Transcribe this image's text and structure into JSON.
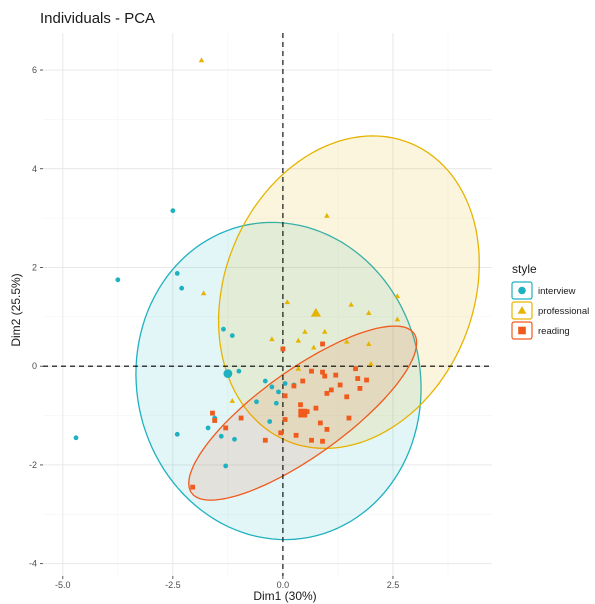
{
  "chart_data": {
    "type": "scatter",
    "title": "Individuals - PCA",
    "xlabel": "Dim1 (30%)",
    "ylabel": "Dim2 (25.5%)",
    "xlim": [
      -5.45,
      4.75
    ],
    "ylim": [
      -4.25,
      6.75
    ],
    "x_ticks": [
      -5.0,
      -2.5,
      0.0,
      2.5
    ],
    "x_tick_labels": [
      "-5.0",
      "-2.5",
      "0.0",
      "2.5"
    ],
    "y_ticks": [
      -4,
      -2,
      0,
      2,
      4,
      6
    ],
    "y_tick_labels": [
      "-4",
      "-2",
      "0",
      "2",
      "4",
      "6"
    ],
    "grid": true,
    "reference_lines": {
      "x": 0,
      "y": 0,
      "style": "dashed"
    },
    "legend": {
      "title": "style",
      "position": "right"
    },
    "series": [
      {
        "name": "interview",
        "color": "#1fb1bf",
        "marker": "circle",
        "points": [
          [
            -2.5,
            3.15
          ],
          [
            -3.75,
            1.75
          ],
          [
            -2.4,
            1.88
          ],
          [
            -2.3,
            1.58
          ],
          [
            -1.35,
            0.75
          ],
          [
            -1.15,
            0.62
          ],
          [
            -1.0,
            -0.1
          ],
          [
            -0.4,
            -0.3
          ],
          [
            -0.25,
            -0.42
          ],
          [
            -0.1,
            -0.52
          ],
          [
            0.05,
            -0.35
          ],
          [
            0.25,
            -0.38
          ],
          [
            -0.15,
            -0.75
          ],
          [
            -0.6,
            -0.72
          ],
          [
            -0.3,
            -1.12
          ],
          [
            -1.55,
            -1.05
          ],
          [
            -1.7,
            -1.25
          ],
          [
            -1.4,
            -1.42
          ],
          [
            -1.1,
            -1.48
          ],
          [
            -2.4,
            -1.38
          ],
          [
            -1.3,
            -2.02
          ],
          [
            -4.7,
            -1.45
          ]
        ],
        "centroid": [
          -1.25,
          -0.15
        ],
        "ellipse": {
          "center": [
            -0.1,
            -0.3
          ],
          "rx": 3.3,
          "ry": 3.15,
          "angle": -40
        }
      },
      {
        "name": "professional",
        "color": "#e6b400",
        "marker": "triangle",
        "points": [
          [
            -1.85,
            6.2
          ],
          [
            1.0,
            3.05
          ],
          [
            -1.8,
            1.48
          ],
          [
            0.1,
            1.3
          ],
          [
            1.55,
            1.25
          ],
          [
            1.95,
            1.08
          ],
          [
            2.6,
            1.42
          ],
          [
            0.5,
            0.7
          ],
          [
            0.95,
            0.7
          ],
          [
            -0.25,
            0.55
          ],
          [
            0.35,
            0.52
          ],
          [
            1.45,
            0.5
          ],
          [
            1.95,
            0.45
          ],
          [
            2.6,
            0.95
          ],
          [
            0.7,
            0.38
          ],
          [
            -1.15,
            -0.7
          ],
          [
            2.0,
            0.05
          ],
          [
            0.35,
            -0.05
          ]
        ],
        "centroid": [
          0.75,
          1.08
        ],
        "ellipse": {
          "center": [
            1.5,
            1.5
          ],
          "rx": 3.35,
          "ry": 2.75,
          "angle": 55
        }
      },
      {
        "name": "reading",
        "color": "#f05a1c",
        "marker": "square",
        "points": [
          [
            -2.05,
            -2.45
          ],
          [
            -1.6,
            -0.95
          ],
          [
            -1.55,
            -1.1
          ],
          [
            -1.3,
            -1.25
          ],
          [
            -0.95,
            -1.05
          ],
          [
            -0.4,
            -1.5
          ],
          [
            -0.05,
            -1.35
          ],
          [
            0.3,
            -1.4
          ],
          [
            0.05,
            -1.08
          ],
          [
            0.55,
            -0.92
          ],
          [
            0.75,
            -0.85
          ],
          [
            0.85,
            -1.15
          ],
          [
            0.9,
            -1.52
          ],
          [
            0.65,
            -1.5
          ],
          [
            1.0,
            -1.28
          ],
          [
            1.5,
            -1.05
          ],
          [
            1.45,
            -0.62
          ],
          [
            1.1,
            -0.48
          ],
          [
            1.3,
            -0.38
          ],
          [
            1.75,
            -0.45
          ],
          [
            1.0,
            -0.55
          ],
          [
            0.4,
            -0.78
          ],
          [
            0.25,
            -0.4
          ],
          [
            0.45,
            -0.3
          ],
          [
            0.65,
            -0.1
          ],
          [
            0.9,
            -0.12
          ],
          [
            1.2,
            -0.18
          ],
          [
            1.7,
            -0.25
          ],
          [
            1.9,
            -0.28
          ],
          [
            0.05,
            -0.6
          ],
          [
            0.0,
            0.35
          ],
          [
            0.9,
            0.45
          ],
          [
            1.65,
            -0.05
          ],
          [
            0.95,
            -0.2
          ]
        ],
        "centroid": [
          0.45,
          -0.95
        ],
        "ellipse": {
          "center": [
            0.45,
            -0.95
          ],
          "rx": 3.0,
          "ry": 0.9,
          "angle": 32
        }
      }
    ]
  }
}
